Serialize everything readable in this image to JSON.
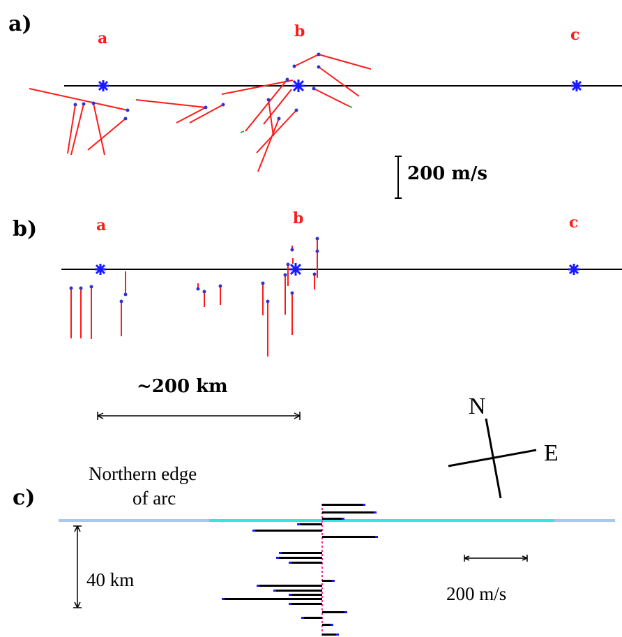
{
  "panels": {
    "a": {
      "label": "a)",
      "stations": [
        "a",
        "b",
        "c"
      ],
      "scale_label": "200 m/s"
    },
    "b": {
      "label": "b)",
      "stations": [
        "a",
        "b",
        "c"
      ],
      "distance_label": "~200 km"
    },
    "c": {
      "label": "c)",
      "edge_label_line1": "Northern edge",
      "edge_label_line2": "of arc",
      "depth_label": "40 km",
      "scale_label": "200 m/s"
    }
  },
  "compass": {
    "north": "N",
    "east": "E"
  },
  "colors": {
    "vector": "#ff1a1a",
    "point": "#3333cc",
    "station_star": "#1a1aff",
    "axis": "#000000",
    "edge_light": "#a8c8f0",
    "edge_cyan": "#33e6e6",
    "bar_black": "#000000",
    "bar_blue": "#1a1aff",
    "bar_pink": "#ff2aa0"
  }
}
